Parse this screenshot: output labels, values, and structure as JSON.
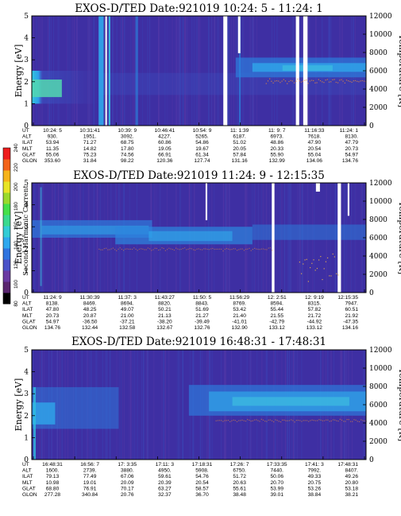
{
  "colors": {
    "background": "#3e2fa3",
    "colorbar": [
      "#000000",
      "#5a2670",
      "#6a3aa2",
      "#4a52c8",
      "#2f74df",
      "#2ea8ee",
      "#32ccd5",
      "#39d98e",
      "#44e04a",
      "#9ad92c",
      "#e8e426",
      "#f6b31a",
      "#f3641a",
      "#ee1c1c"
    ]
  },
  "colorbar": {
    "label": "Second Harmonic Current",
    "ticks": [
      "80",
      "100",
      "120",
      "140",
      "160",
      "180",
      "200",
      "220",
      "240"
    ]
  },
  "chart_data": [
    {
      "type": "heatmap",
      "title": "EXOS-D/TED   Date:921019  10:24: 5 - 11:24: 1",
      "ylabel": "Energy [eV]",
      "y2label": "Temperature [K]",
      "ylim": [
        0,
        5
      ],
      "y2lim": [
        0,
        12000
      ],
      "yticks": [
        "0",
        "1",
        "2",
        "3",
        "4",
        "5"
      ],
      "y2ticks": [
        "0",
        "2000",
        "4000",
        "6000",
        "8000",
        "10000",
        "12000"
      ],
      "ephemeris_labels": [
        "UT",
        "ALT",
        "ILAT",
        "MLT",
        "GLAT",
        "GLON"
      ],
      "ephemeris": [
        [
          "10:24: 5",
          "10:31:41",
          "10:39: 9",
          "10:46:41",
          "10:54: 9",
          "11: 1:39",
          "11: 9: 7",
          "11:16:33",
          "11:24: 1"
        ],
        [
          "930.",
          "1951.",
          "3092.",
          "4227.",
          "5265.",
          "6187.",
          "6973.",
          "7618.",
          "8130."
        ],
        [
          "53.94",
          "71.27",
          "68.75",
          "60.86",
          "54.86",
          "51.02",
          "48.86",
          "47.90",
          "47.79"
        ],
        [
          "11.35",
          "14.82",
          "17.80",
          "19.05",
          "19.67",
          "20.05",
          "20.33",
          "20.54",
          "20.73"
        ],
        [
          "55.06",
          "75.23",
          "74.56",
          "66.91",
          "61.34",
          "57.84",
          "55.90",
          "55.04",
          "54.97"
        ],
        [
          "353.60",
          "31.84",
          "98.22",
          "120.36",
          "127.74",
          "131.16",
          "132.99",
          "134.06",
          "134.76"
        ]
      ]
    },
    {
      "type": "heatmap",
      "title": "EXOS-D/TED   Date:921019  11:24: 9 - 12:15:35",
      "ylabel": "Energy [eV]",
      "y2label": "Temperature [K]",
      "ylim": [
        0,
        5
      ],
      "y2lim": [
        0,
        12000
      ],
      "yticks": [
        "0",
        "1",
        "2",
        "3",
        "4",
        "5"
      ],
      "y2ticks": [
        "0",
        "2000",
        "4000",
        "6000",
        "8000",
        "10000",
        "12000"
      ],
      "ephemeris_labels": [
        "UT",
        "ALT",
        "ILAT",
        "MLT",
        "GLAT",
        "GLON"
      ],
      "ephemeris": [
        [
          "11:24: 9",
          "11:30:39",
          "11:37: 3",
          "11:43:27",
          "11:50: 5",
          "11:56:29",
          "12: 2:51",
          "12: 9:19",
          "12:15:35"
        ],
        [
          "8138.",
          "8469.",
          "8694.",
          "8820.",
          "8843.",
          "8769.",
          "8594.",
          "8315.",
          "7947."
        ],
        [
          "47.80",
          "48.25",
          "49.07",
          "50.21",
          "51.69",
          "53.42",
          "55.44",
          "57.82",
          "60.51"
        ],
        [
          "20.73",
          "20.87",
          "21.00",
          "21.13",
          "21.27",
          "21.40",
          "21.55",
          "21.72",
          "21.92"
        ],
        [
          "54.97",
          "-36.50",
          "-37.21",
          "-38.20",
          "-39.49",
          "-41.01",
          "-42.79",
          "-44.92",
          "-47.35"
        ],
        [
          "134.76",
          "132.44",
          "132.58",
          "132.67",
          "132.76",
          "132.90",
          "133.12",
          "133.12",
          "134.16"
        ]
      ]
    },
    {
      "type": "heatmap",
      "title": "EXOS-D/TED   Date:921019  16:48:31 - 17:48:31",
      "ylabel": "Energy [eV]",
      "y2label": "Temperature [K]",
      "ylim": [
        0,
        5
      ],
      "y2lim": [
        0,
        12000
      ],
      "yticks": [
        "0",
        "1",
        "2",
        "3",
        "4",
        "5"
      ],
      "y2ticks": [
        "0",
        "2000",
        "4000",
        "6000",
        "8000",
        "10000",
        "12000"
      ],
      "ephemeris_labels": [
        "UT",
        "ALT",
        "ILAT",
        "MLT",
        "GLAT",
        "GLON"
      ],
      "ephemeris": [
        [
          "16:48:31",
          "16:56: 7",
          "17: 3:35",
          "17:11: 3",
          "17:18:31",
          "17:26: 7",
          "17:33:35",
          "17:41: 3",
          "17:48:31"
        ],
        [
          "1600.",
          "2739.",
          "3880.",
          "4950.",
          "5908.",
          "6750.",
          "7440.",
          "7992.",
          "8407."
        ],
        [
          "79.13",
          "77.49",
          "67.06",
          "59.61",
          "54.76",
          "51.72",
          "50.06",
          "49.33",
          "49.26"
        ],
        [
          "10.98",
          "19.01",
          "20.09",
          "20.39",
          "20.54",
          "20.63",
          "20.70",
          "20.75",
          "20.80"
        ],
        [
          "68.80",
          "76.91",
          "70.17",
          "63.27",
          "58.57",
          "55.61",
          "53.99",
          "53.26",
          "53.18"
        ],
        [
          "277.28",
          "340.84",
          "20.76",
          "32.37",
          "36.70",
          "38.48",
          "39.01",
          "38.84",
          "38.21"
        ]
      ]
    }
  ]
}
